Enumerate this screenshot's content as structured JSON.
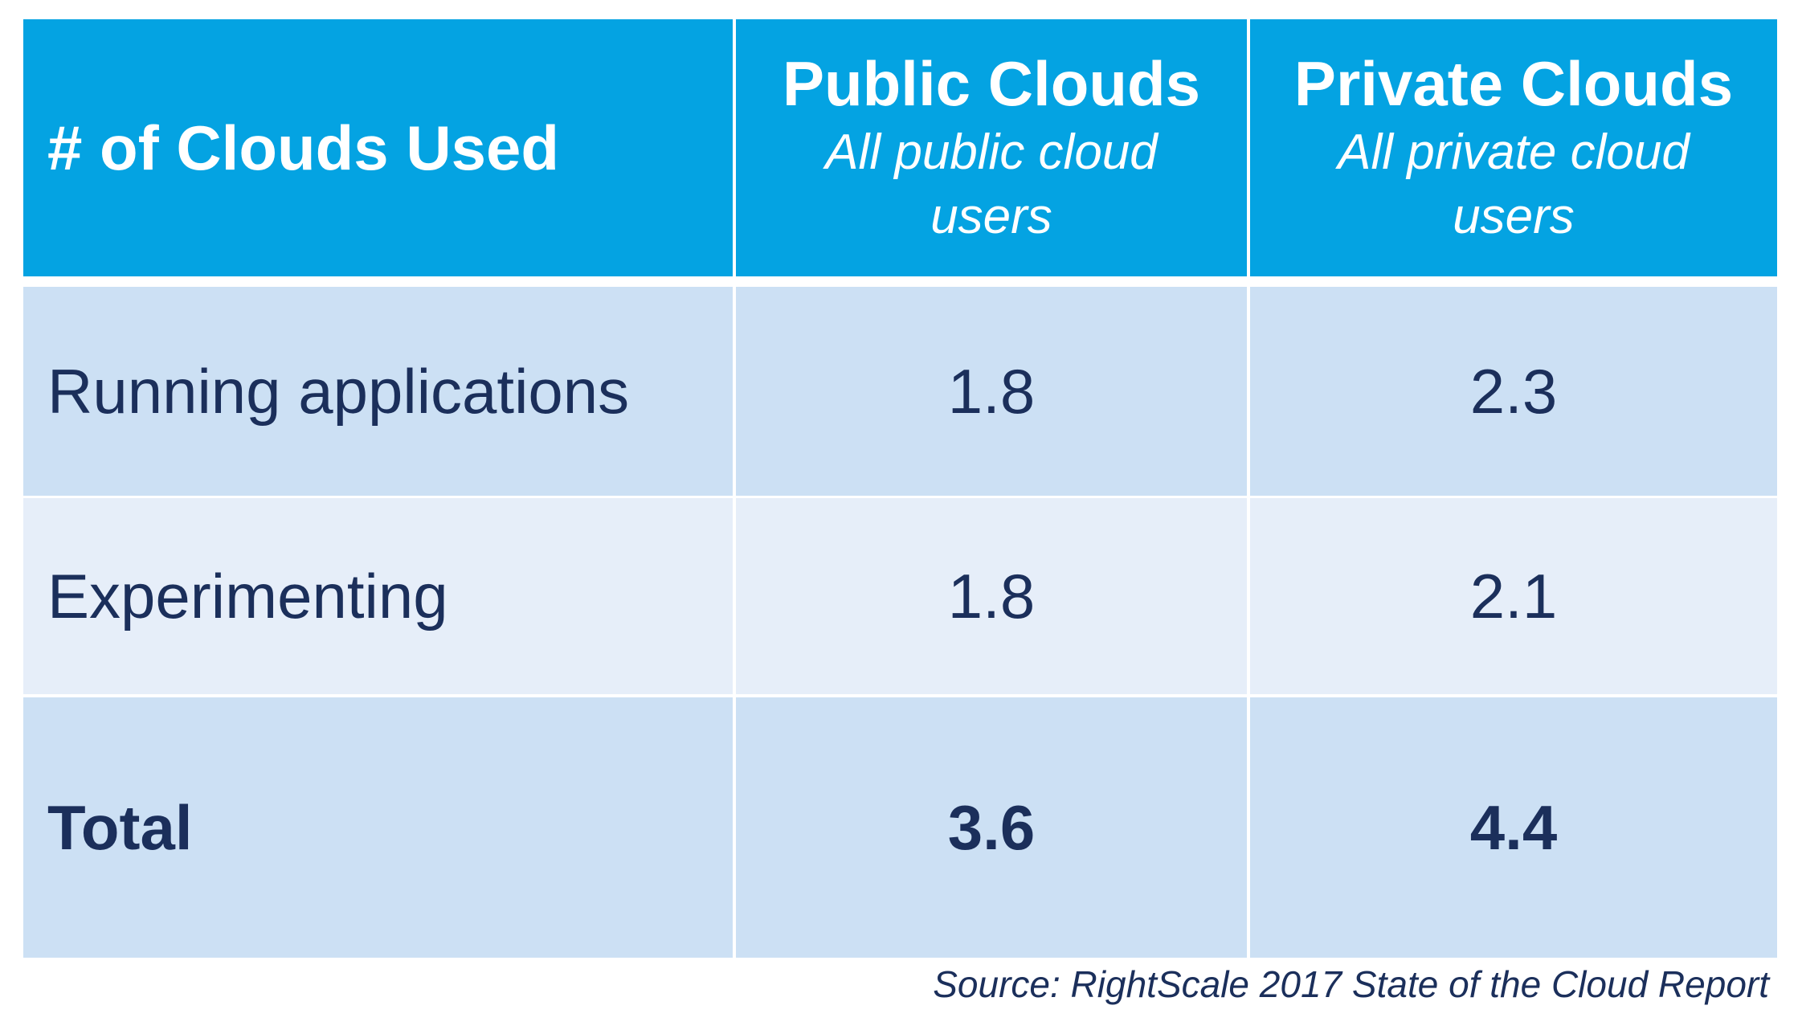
{
  "header": {
    "row_label": "# of Clouds Used",
    "columns": [
      {
        "title": "Public Clouds",
        "subtitle": "All public cloud users"
      },
      {
        "title": "Private Clouds",
        "subtitle": "All private cloud users"
      }
    ]
  },
  "rows": [
    {
      "label": "Running applications",
      "public": "1.8",
      "private": "2.3"
    },
    {
      "label": "Experimenting",
      "public": "1.8",
      "private": "2.1"
    },
    {
      "label": "Total",
      "public": "3.6",
      "private": "4.4"
    }
  ],
  "source": "Source: RightScale 2017 State of the Cloud Report",
  "colors": {
    "header": "#04a3e2",
    "row_dark": "#cce0f4",
    "row_light": "#e6eef9",
    "text": "#1b2f5b"
  }
}
